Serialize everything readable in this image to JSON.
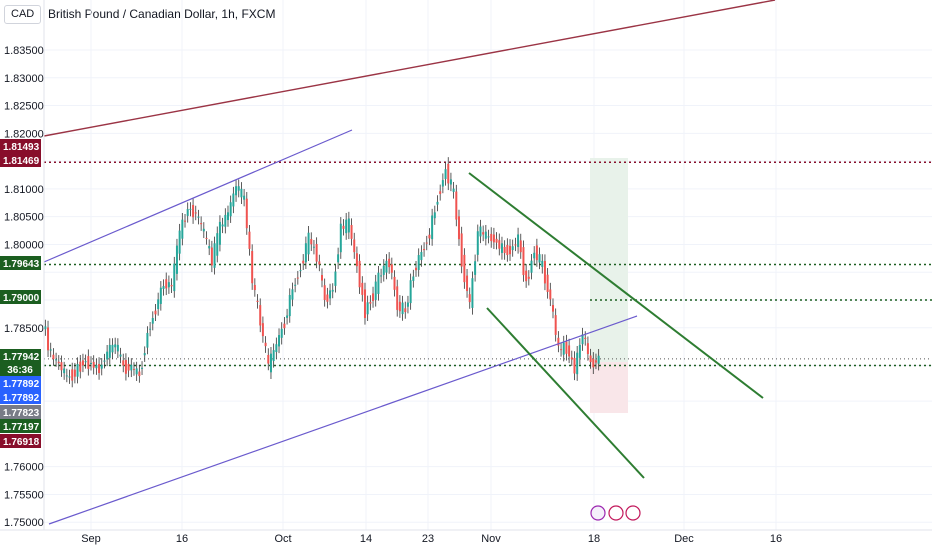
{
  "header": {
    "currency_box": "CAD",
    "title": "British Pound / Canadian Dollar, 1h, FXCM"
  },
  "chart_data": {
    "type": "candlestick",
    "title": "British Pound / Canadian Dollar, 1h, FXCM",
    "y_ticks": [
      1.75,
      1.755,
      1.76,
      1.7718,
      1.7782,
      1.785,
      1.79,
      1.795,
      1.8,
      1.805,
      1.81,
      1.815,
      1.82,
      1.825,
      1.83,
      1.835
    ],
    "y_tick_labels": [
      "1.75000",
      "1.75500",
      "1.76000",
      "",
      "",
      "1.78500",
      "",
      "",
      "1.80000",
      "1.80500",
      "1.81000",
      "",
      "1.82000",
      "1.82500",
      "1.83000",
      "1.83500"
    ],
    "ylim": [
      1.7495,
      1.8395
    ],
    "x_tick_labels": [
      "Sep",
      "16",
      "Oct",
      "14",
      "23",
      "Nov",
      "18",
      "Dec",
      "16"
    ],
    "price_labels": [
      {
        "value": "1.81493",
        "color": "#880e2b"
      },
      {
        "value": "1.81469",
        "color": "#880e2b"
      },
      {
        "value": "1.79643",
        "color": "#1b5e20"
      },
      {
        "value": "1.79000",
        "color": "#1b5e20"
      },
      {
        "value": "1.77942",
        "color": "#1b5e20"
      },
      {
        "value": "36:36",
        "color": "#1b5e20"
      },
      {
        "value": "1.77892",
        "color": "#2962ff"
      },
      {
        "value": "1.77892",
        "color": "#2962ff"
      },
      {
        "value": "1.77823",
        "color": "#787b86"
      },
      {
        "value": "1.77197",
        "color": "#1b5e20"
      },
      {
        "value": "1.76918",
        "color": "#880e2b"
      }
    ],
    "horizontal_levels": [
      1.8148,
      1.7964,
      1.79,
      1.7794,
      1.7782
    ],
    "price_path": [
      [
        0,
        1.786
      ],
      [
        3,
        1.78
      ],
      [
        6,
        1.7785
      ],
      [
        9,
        1.776
      ],
      [
        12,
        1.777
      ],
      [
        15,
        1.779
      ],
      [
        18,
        1.7785
      ],
      [
        21,
        1.7775
      ],
      [
        24,
        1.7805
      ],
      [
        27,
        1.782
      ],
      [
        30,
        1.778
      ],
      [
        33,
        1.7778
      ],
      [
        36,
        1.7765
      ],
      [
        39,
        1.784
      ],
      [
        42,
        1.7885
      ],
      [
        45,
        1.793
      ],
      [
        48,
        1.7925
      ],
      [
        51,
        1.802
      ],
      [
        54,
        1.8065
      ],
      [
        57,
        1.8055
      ],
      [
        60,
        1.802
      ],
      [
        63,
        1.797
      ],
      [
        66,
        1.803
      ],
      [
        69,
        1.8055
      ],
      [
        72,
        1.8105
      ],
      [
        75,
        1.808
      ],
      [
        78,
        1.7935
      ],
      [
        81,
        1.786
      ],
      [
        84,
        1.778
      ],
      [
        87,
        1.782
      ],
      [
        90,
        1.786
      ],
      [
        93,
        1.792
      ],
      [
        96,
        1.796
      ],
      [
        99,
        1.801
      ],
      [
        102,
        1.798
      ],
      [
        105,
        1.79
      ],
      [
        108,
        1.792
      ],
      [
        111,
        1.803
      ],
      [
        114,
        1.8035
      ],
      [
        117,
        1.796
      ],
      [
        120,
        1.788
      ],
      [
        123,
        1.791
      ],
      [
        126,
        1.795
      ],
      [
        129,
        1.797
      ],
      [
        132,
        1.789
      ],
      [
        135,
        1.788
      ],
      [
        138,
        1.795
      ],
      [
        141,
        1.7985
      ],
      [
        144,
        1.802
      ],
      [
        147,
        1.8085
      ],
      [
        150,
        1.8135
      ],
      [
        153,
        1.809
      ],
      [
        156,
        1.797
      ],
      [
        159,
        1.789
      ],
      [
        162,
        1.8025
      ],
      [
        165,
        1.8015
      ],
      [
        168,
        1.801
      ],
      [
        171,
        1.799
      ],
      [
        174,
        1.799
      ],
      [
        177,
        1.801
      ],
      [
        180,
        1.793
      ],
      [
        183,
        1.799
      ],
      [
        186,
        1.796
      ],
      [
        189,
        1.79
      ],
      [
        192,
        1.781
      ],
      [
        195,
        1.7815
      ],
      [
        198,
        1.7775
      ],
      [
        201,
        1.784
      ],
      [
        204,
        1.7785
      ],
      [
        207,
        1.7794
      ]
    ]
  }
}
